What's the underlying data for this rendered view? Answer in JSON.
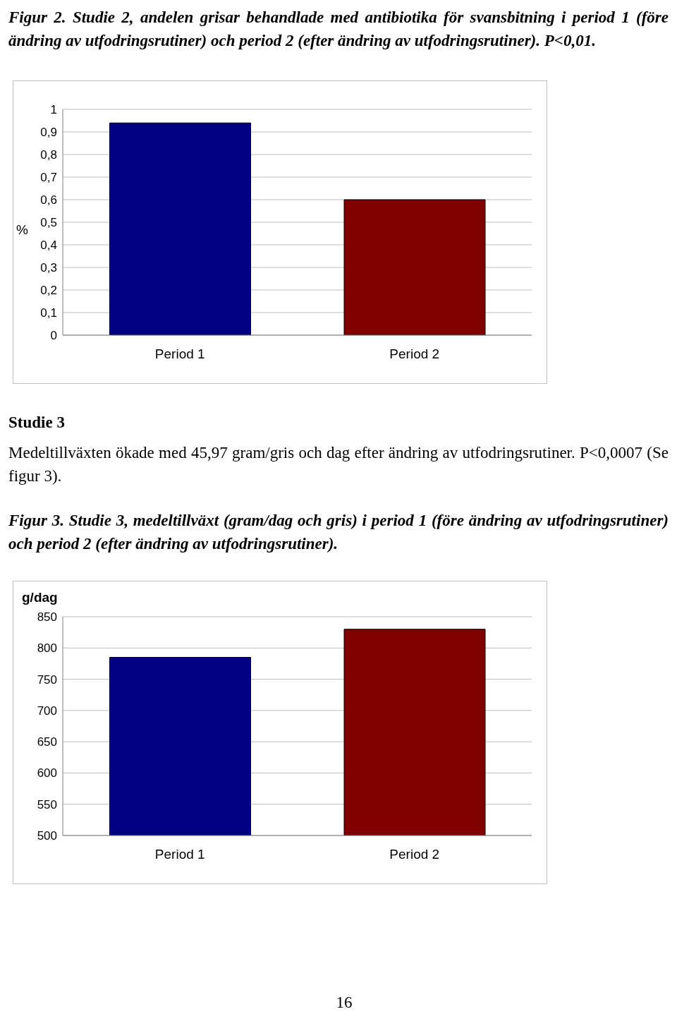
{
  "chart_data": [
    {
      "type": "bar",
      "title": "Figur 2. Studie 2, andelen grisar behandlade med antibiotika för svansbitning i period 1 (före ändring av utfodringsrutiner) och period 2 (efter ändring av utfodringsrutiner). P<0,01.",
      "ylabel": "%",
      "categories": [
        "Period 1",
        "Period 2"
      ],
      "values": [
        0.94,
        0.6
      ],
      "colors": [
        "#000080",
        "#800000"
      ],
      "ylim": [
        0,
        1
      ],
      "yticks": [
        0,
        {
          "value": 0.1,
          "label": "0,1"
        },
        {
          "value": 0.2,
          "label": "0,2"
        },
        {
          "value": 0.3,
          "label": "0,3"
        },
        {
          "value": 0.4,
          "label": "0,4"
        },
        {
          "value": 0.5,
          "label": "0,5"
        },
        {
          "value": 0.6,
          "label": "0,6"
        },
        {
          "value": 0.7,
          "label": "0,7"
        },
        {
          "value": 0.8,
          "label": "0,8"
        },
        {
          "value": 0.9,
          "label": "0,9"
        },
        1
      ],
      "grid": "y",
      "annotations": [
        "Studie 3",
        "Medeltillväxten ökade med 45,97 gram/gris och dag efter ändring av utfodringsrutiner. P<0,0007 (Se figur 3)."
      ]
    },
    {
      "type": "bar",
      "title": "Figur 3. Studie 3, medeltillväxt (gram/dag och gris) i period 1 (före ändring av utfodringsrutiner) och period 2 (efter ändring av utfodringsrutiner).",
      "ylabel": "g/dag",
      "categories": [
        "Period 1",
        "Period 2"
      ],
      "values": [
        785,
        830
      ],
      "colors": [
        "#000080",
        "#800000"
      ],
      "ylim": [
        500,
        850
      ],
      "yticks": [
        500,
        550,
        600,
        650,
        700,
        750,
        800,
        850
      ],
      "grid": "y",
      "annotations": [
        "16"
      ]
    }
  ]
}
